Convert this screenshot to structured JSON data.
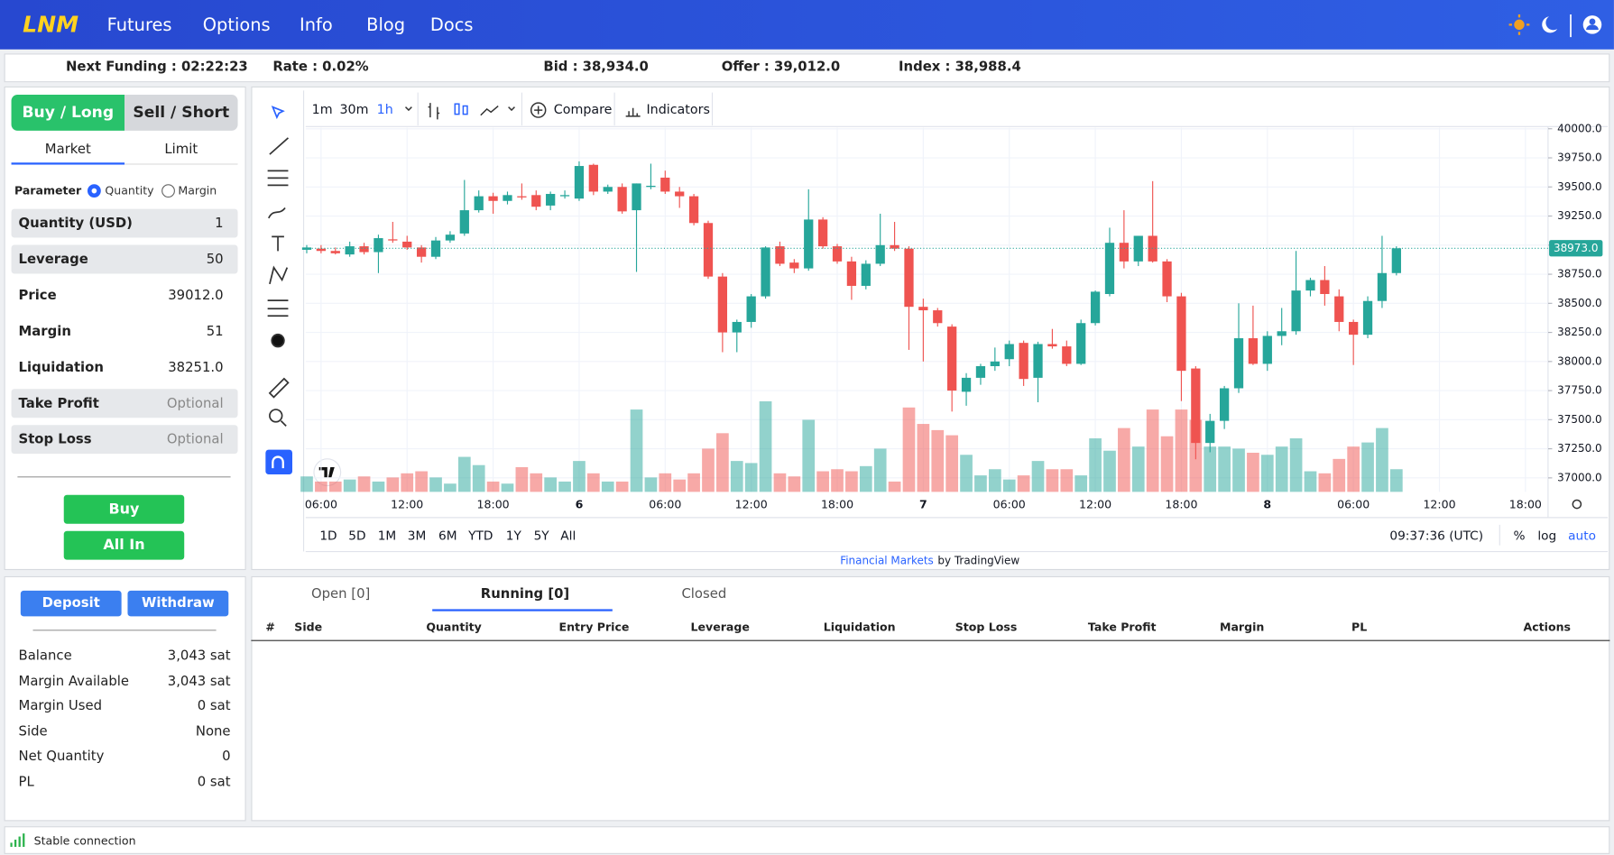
{
  "nav": {
    "logo": "LNM",
    "links": [
      "Futures",
      "Options",
      "Info",
      "Blog",
      "Docs"
    ]
  },
  "ticker": {
    "next_funding": "Next Funding : 02:22:23",
    "rate": "Rate : 0.02%",
    "bid": "Bid : 38,934.0",
    "offer": "Offer : 39,012.0",
    "index": "Index : 38,988.4"
  },
  "order": {
    "tabs": [
      "Buy / Long",
      "Sell / Short"
    ],
    "types": [
      "Market",
      "Limit"
    ],
    "parameter": "Parameter",
    "options": [
      "Quantity",
      "Margin"
    ],
    "fields": [
      [
        "Quantity (USD)",
        "1"
      ],
      [
        "Leverage",
        "50"
      ],
      [
        "Price",
        "39012.0"
      ],
      [
        "Margin",
        "51"
      ],
      [
        "Liquidation",
        "38251.0"
      ],
      [
        "Take Profit",
        "Optional"
      ],
      [
        "Stop Loss",
        "Optional"
      ]
    ],
    "buttons": [
      "Buy",
      "All In"
    ]
  },
  "chart": {
    "intervals": [
      "1m",
      "30m",
      "1h"
    ],
    "compare": "Compare",
    "indicators": "Indicators",
    "ylim": [
      36880,
      40010
    ],
    "yticks": [
      {
        "value": 40000,
        "label": "40000.0"
      },
      {
        "value": 39750,
        "label": "39750.0"
      },
      {
        "value": 39500,
        "label": "39500.0"
      },
      {
        "value": 39250,
        "label": "39250.0"
      },
      {
        "value": 39000,
        "label": "39000.0"
      },
      {
        "value": 38750,
        "label": "38750.0"
      },
      {
        "value": 38500,
        "label": "38500.0"
      },
      {
        "value": 38250,
        "label": "38250.0"
      },
      {
        "value": 38000,
        "label": "38000.0"
      },
      {
        "value": 37750,
        "label": "37750.0"
      },
      {
        "value": 37500,
        "label": "37500.0"
      },
      {
        "value": 37250,
        "label": "37250.0"
      },
      {
        "value": 37000,
        "label": "37000.0"
      }
    ],
    "last_price": {
      "value": 38973,
      "label": "38973.0"
    },
    "x_labels": [
      "06:00",
      "12:00",
      "18:00",
      "6",
      "06:00",
      "12:00",
      "18:00",
      "7",
      "06:00",
      "12:00",
      "18:00",
      "8",
      "06:00",
      "12:00",
      "18:00"
    ],
    "candles": [
      [
        38960,
        39000,
        38930,
        38980
      ],
      [
        38970,
        39000,
        38930,
        38950
      ],
      [
        38950,
        38980,
        38920,
        38930
      ],
      [
        38920,
        39030,
        38900,
        38990
      ],
      [
        38990,
        39020,
        38920,
        38940
      ],
      [
        38940,
        39090,
        38760,
        39060
      ],
      [
        39050,
        39200,
        39020,
        39040
      ],
      [
        39030,
        39080,
        38960,
        38980
      ],
      [
        38980,
        39000,
        38850,
        38900
      ],
      [
        38900,
        39070,
        38880,
        39040
      ],
      [
        39040,
        39120,
        39020,
        39090
      ],
      [
        39100,
        39560,
        39080,
        39300
      ],
      [
        39300,
        39470,
        39280,
        39420
      ],
      [
        39420,
        39450,
        39270,
        39380
      ],
      [
        39380,
        39460,
        39350,
        39430
      ],
      [
        39420,
        39530,
        39390,
        39410
      ],
      [
        39430,
        39470,
        39300,
        39330
      ],
      [
        39340,
        39460,
        39300,
        39440
      ],
      [
        39420,
        39470,
        39400,
        39430
      ],
      [
        39400,
        39720,
        39380,
        39680
      ],
      [
        39690,
        39700,
        39430,
        39460
      ],
      [
        39460,
        39520,
        39440,
        39500
      ],
      [
        39500,
        39530,
        39270,
        39290
      ],
      [
        39300,
        39530,
        38770,
        39530
      ],
      [
        39500,
        39700,
        39480,
        39510
      ],
      [
        39580,
        39640,
        39440,
        39460
      ],
      [
        39460,
        39500,
        39320,
        39420
      ],
      [
        39420,
        39440,
        39170,
        39190
      ],
      [
        39190,
        39210,
        38710,
        38730
      ],
      [
        38730,
        38760,
        38080,
        38250
      ],
      [
        38250,
        38360,
        38080,
        38340
      ],
      [
        38340,
        38580,
        38290,
        38560
      ],
      [
        38560,
        38990,
        38540,
        38980
      ],
      [
        38990,
        39030,
        38820,
        38840
      ],
      [
        38850,
        38880,
        38760,
        38800
      ],
      [
        38800,
        39480,
        38780,
        39220
      ],
      [
        39220,
        39240,
        38970,
        38990
      ],
      [
        38990,
        39010,
        38840,
        38860
      ],
      [
        38860,
        38900,
        38530,
        38650
      ],
      [
        38650,
        38870,
        38620,
        38840
      ],
      [
        38840,
        39270,
        38820,
        39000
      ],
      [
        39000,
        39200,
        38950,
        38970
      ],
      [
        38970,
        38990,
        38100,
        38470
      ],
      [
        38470,
        38540,
        38000,
        38440
      ],
      [
        38440,
        38460,
        38300,
        38330
      ],
      [
        38300,
        38320,
        37570,
        37750
      ],
      [
        37740,
        37900,
        37620,
        37860
      ],
      [
        37860,
        37980,
        37800,
        37960
      ],
      [
        37960,
        38120,
        37920,
        38000
      ],
      [
        38020,
        38180,
        37960,
        38150
      ],
      [
        38160,
        38180,
        37790,
        37850
      ],
      [
        37860,
        38170,
        37650,
        38150
      ],
      [
        38150,
        38280,
        38110,
        38130
      ],
      [
        38130,
        38180,
        37960,
        37980
      ],
      [
        37980,
        38360,
        37970,
        38330
      ],
      [
        38330,
        38610,
        38310,
        38600
      ],
      [
        38580,
        39150,
        38560,
        39020
      ],
      [
        39020,
        39300,
        38800,
        38860
      ],
      [
        38860,
        39080,
        38820,
        39080
      ],
      [
        39080,
        39550,
        38850,
        38860
      ],
      [
        38860,
        38880,
        38510,
        38560
      ],
      [
        38560,
        38590,
        37660,
        37920
      ],
      [
        37940,
        37960,
        37160,
        37300
      ],
      [
        37300,
        37550,
        37220,
        37490
      ],
      [
        37490,
        37790,
        37420,
        37770
      ],
      [
        37770,
        38500,
        37730,
        38200
      ],
      [
        38200,
        38480,
        37970,
        37980
      ],
      [
        37980,
        38260,
        37920,
        38220
      ],
      [
        38220,
        38460,
        38140,
        38260
      ],
      [
        38260,
        38950,
        38230,
        38610
      ],
      [
        38610,
        38720,
        38560,
        38700
      ],
      [
        38700,
        38820,
        38480,
        38580
      ],
      [
        38560,
        38620,
        38260,
        38340
      ],
      [
        38340,
        38360,
        37970,
        38230
      ],
      [
        38230,
        38560,
        38200,
        38520
      ],
      [
        38520,
        39080,
        38460,
        38760
      ],
      [
        38760,
        38990,
        38740,
        38973
      ]
    ],
    "volumes": [
      15,
      10,
      10,
      12,
      15,
      10,
      14,
      18,
      20,
      14,
      8,
      34,
      26,
      10,
      8,
      24,
      18,
      14,
      10,
      30,
      18,
      10,
      10,
      80,
      14,
      18,
      12,
      18,
      42,
      57,
      30,
      28,
      88,
      18,
      15,
      70,
      20,
      22,
      20,
      25,
      42,
      10,
      82,
      66,
      60,
      55,
      36,
      16,
      22,
      12,
      16,
      30,
      22,
      22,
      16,
      52,
      40,
      62,
      44,
      80,
      54,
      80,
      70,
      44,
      44,
      42,
      38,
      36,
      44,
      52,
      20,
      18,
      32,
      44,
      48,
      62,
      22
    ],
    "ranges": [
      "1D",
      "5D",
      "1M",
      "3M",
      "6M",
      "YTD",
      "1Y",
      "5Y",
      "All"
    ],
    "clock": "09:37:36 (UTC)",
    "scale_opts": [
      "%",
      "log",
      "auto"
    ],
    "credit_link": "Financial Markets",
    "credit": "by TradingView"
  },
  "wallet": {
    "buttons": [
      "Deposit",
      "Withdraw"
    ],
    "rows": [
      [
        "Balance",
        "3,043 sat"
      ],
      [
        "Margin Available",
        "3,043 sat"
      ],
      [
        "Margin Used",
        "0 sat"
      ],
      [
        "Side",
        "None"
      ],
      [
        "Net Quantity",
        "0"
      ],
      [
        "PL",
        "0 sat"
      ]
    ]
  },
  "positions": {
    "tabs": [
      "Open [0]",
      "Running [0]",
      "Closed"
    ],
    "columns": [
      "#",
      "Side",
      "Quantity",
      "Entry Price",
      "Leverage",
      "Liquidation",
      "Stop Loss",
      "Take Profit",
      "Margin",
      "PL",
      "Actions"
    ]
  },
  "status": "Stable connection"
}
